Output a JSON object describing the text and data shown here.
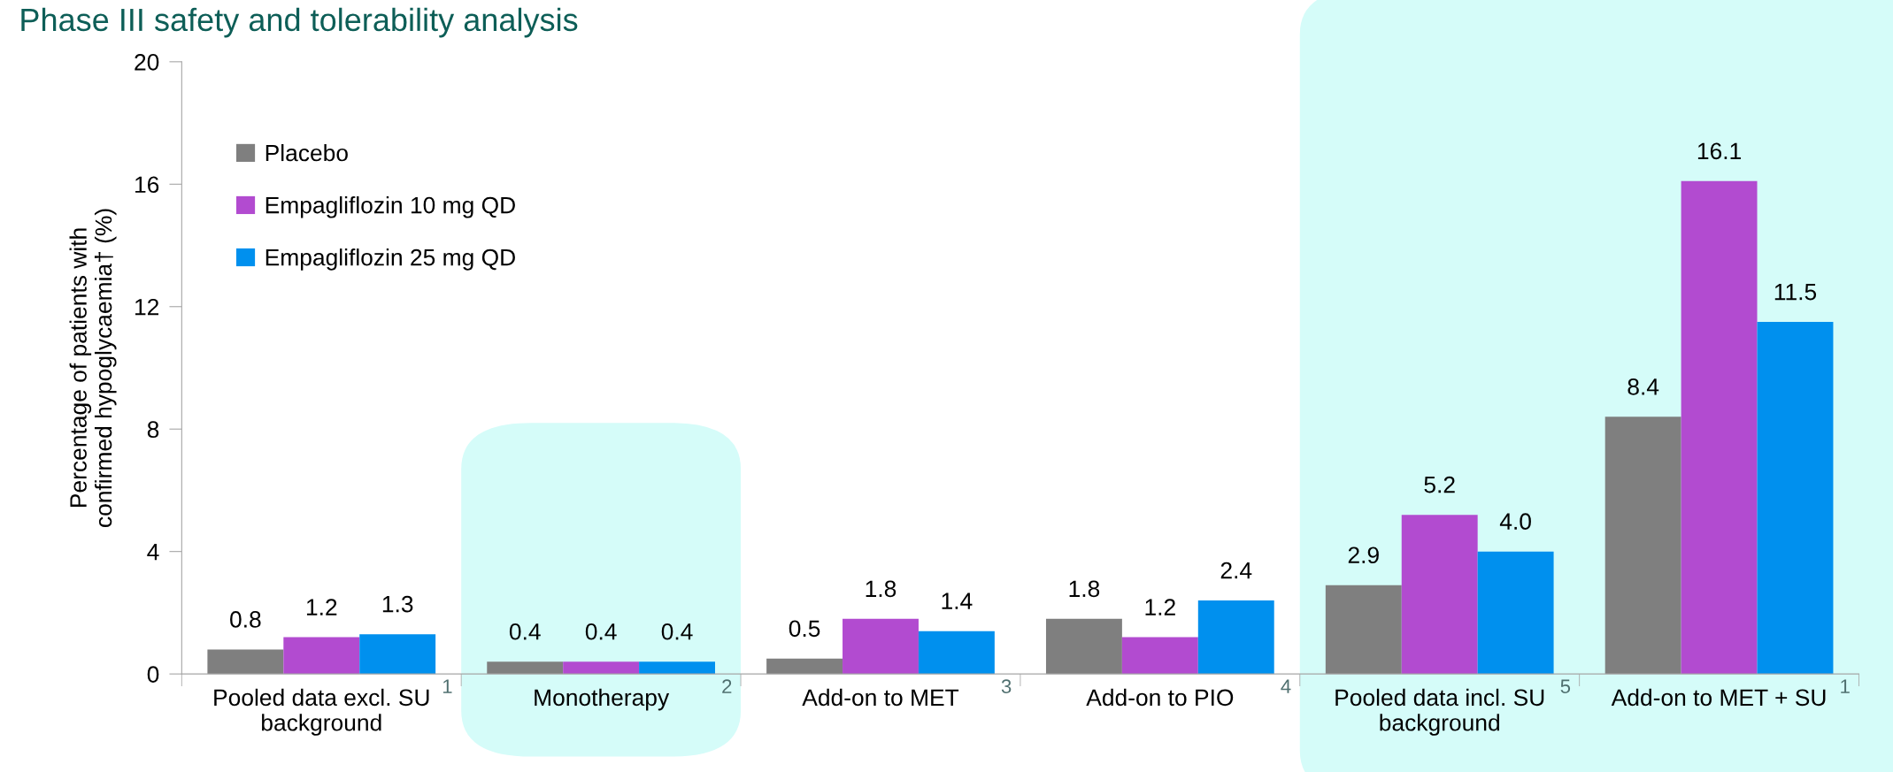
{
  "chart_data": {
    "type": "bar",
    "title": "Phase III safety and tolerability analysis",
    "ylabel": "Percentage of patients with\nconfirmed hypoglycaemia† (%)",
    "categories": [
      "Pooled data excl. SU\nbackground",
      "Monotherapy",
      "Add-on to MET",
      "Add-on to PIO",
      "Pooled data incl. SU\nbackground",
      "Add-on to MET + SU"
    ],
    "series": [
      {
        "name": "Placebo",
        "color": "#7f7f7f",
        "values": [
          0.8,
          0.4,
          0.5,
          1.8,
          2.9,
          8.4
        ],
        "value_labels": [
          "0.8",
          "0.4",
          "0.5",
          "1.8",
          "2.9",
          "8.4"
        ]
      },
      {
        "name": "Empagliflozin 10 mg QD",
        "color": "#b24bd0",
        "values": [
          1.2,
          0.4,
          1.8,
          1.2,
          5.2,
          16.1
        ],
        "value_labels": [
          "1.2",
          "0.4",
          "1.8",
          "1.2",
          "5.2",
          "16.1"
        ]
      },
      {
        "name": "Empagliflozin 25 mg QD",
        "color": "#0090ee",
        "values": [
          1.3,
          0.4,
          1.4,
          2.4,
          4,
          11.5
        ],
        "value_labels": [
          "1.3",
          "0.4",
          "1.4",
          "2.4",
          "4.0",
          "11.5"
        ]
      }
    ],
    "ylim": [
      0,
      20
    ],
    "yticks": [
      0,
      4,
      8,
      12,
      16,
      20
    ],
    "legend": "top left",
    "bands": [
      {
        "axis": "x",
        "from": "Monotherapy",
        "to": "Monotherapy",
        "color": "#d5fcf9"
      },
      {
        "axis": "x",
        "from": "Pooled data incl. SU\nbackground",
        "to": "Add-on to MET + SU",
        "color": "#d5fcf9"
      }
    ],
    "annotations": [
      "1",
      "2",
      "3",
      "4",
      "5",
      "1"
    ]
  }
}
